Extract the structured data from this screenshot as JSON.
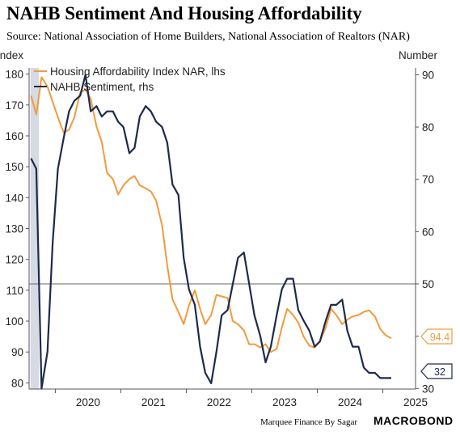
{
  "title": "NAHB Sentiment And Housing Affordability",
  "subtitle": "Source: National Association of Home Builders, National Association of Realtors (NAR)",
  "credit": "Marquee Finance By Sagar",
  "brand": "MACROBOND",
  "chart_data": {
    "type": "line",
    "title": "NAHB Sentiment And Housing Affordability",
    "left_axis": {
      "label": "Index",
      "ylim": [
        78,
        182
      ],
      "ticks": [
        80,
        90,
        100,
        110,
        120,
        130,
        140,
        150,
        160,
        170,
        180
      ]
    },
    "right_axis": {
      "label": "Number",
      "ylim": [
        29.9,
        91.3
      ],
      "ticks": [
        30,
        40,
        50,
        60,
        70,
        80,
        90
      ],
      "tick_labels": [
        "30",
        "40",
        "50",
        "60",
        "70",
        "80",
        "90"
      ]
    },
    "x_axis": {
      "range": [
        2019.6,
        2025.5
      ],
      "ticks": [
        2020,
        2021,
        2022,
        2023,
        2024,
        2025
      ],
      "tick_labels": [
        "2020",
        "2021",
        "2022",
        "2023",
        "2024",
        "2025"
      ]
    },
    "grid": false,
    "legend": "top-left",
    "shaded_period": [
      2019.62,
      2019.75
    ],
    "reference_line": {
      "axis": "right",
      "value": 50
    },
    "colors": {
      "affordability": "#f39a3c",
      "sentiment": "#1d2a4d",
      "shade": "#d5dae3",
      "ref": "#666666"
    },
    "series": [
      {
        "name": "Housing Affordability Index NAR, lhs",
        "axis": "left",
        "color": "#f39a3c",
        "x": [
          2019.63,
          2019.71,
          2019.79,
          2019.88,
          2019.96,
          2020.04,
          2020.13,
          2020.21,
          2020.29,
          2020.38,
          2020.46,
          2020.54,
          2020.63,
          2020.71,
          2020.79,
          2020.88,
          2020.96,
          2021.04,
          2021.13,
          2021.21,
          2021.29,
          2021.38,
          2021.46,
          2021.54,
          2021.63,
          2021.71,
          2021.79,
          2021.88,
          2021.96,
          2022.04,
          2022.13,
          2022.21,
          2022.29,
          2022.38,
          2022.46,
          2022.54,
          2022.63,
          2022.71,
          2022.79,
          2022.88,
          2022.96,
          2023.04,
          2023.13,
          2023.21,
          2023.29,
          2023.38,
          2023.46,
          2023.54,
          2023.63,
          2023.71,
          2023.79,
          2023.88,
          2023.96,
          2024.04,
          2024.13,
          2024.21,
          2024.29,
          2024.38,
          2024.46,
          2024.54,
          2024.63,
          2024.71,
          2024.79,
          2024.88,
          2024.96,
          2025.04,
          2025.13
        ],
        "y": [
          173,
          167,
          179,
          176,
          171,
          166,
          161,
          162,
          166,
          174,
          175,
          172,
          163,
          158,
          148,
          146,
          141,
          144,
          146,
          147,
          144,
          143,
          142,
          139,
          131,
          118,
          107,
          103,
          99,
          105,
          110,
          104,
          99,
          102,
          108.5,
          108,
          107.5,
          100,
          99,
          97,
          92.5,
          92.5,
          91.5,
          92.5,
          90,
          91,
          98,
          104,
          102,
          99.5,
          95,
          92,
          91.5,
          93.5,
          98,
          104,
          102,
          99,
          100.5,
          101.5,
          102,
          103,
          103.5,
          101.5,
          97.5,
          95.5,
          94.4
        ]
      },
      {
        "name": "NAHB Sentiment, rhs",
        "axis": "right",
        "color": "#1d2a4d",
        "x": [
          2019.63,
          2019.71,
          2019.79,
          2019.88,
          2019.96,
          2020.04,
          2020.13,
          2020.21,
          2020.29,
          2020.38,
          2020.46,
          2020.54,
          2020.63,
          2020.71,
          2020.79,
          2020.88,
          2020.96,
          2021.04,
          2021.13,
          2021.21,
          2021.29,
          2021.38,
          2021.46,
          2021.54,
          2021.63,
          2021.71,
          2021.79,
          2021.88,
          2021.96,
          2022.04,
          2022.13,
          2022.21,
          2022.29,
          2022.38,
          2022.46,
          2022.54,
          2022.63,
          2022.71,
          2022.79,
          2022.88,
          2022.96,
          2023.04,
          2023.13,
          2023.21,
          2023.29,
          2023.38,
          2023.46,
          2023.54,
          2023.63,
          2023.71,
          2023.79,
          2023.88,
          2023.96,
          2024.04,
          2024.13,
          2024.21,
          2024.29,
          2024.38,
          2024.46,
          2024.54,
          2024.63,
          2024.71,
          2024.79,
          2024.88,
          2024.96,
          2025.04,
          2025.13
        ],
        "y": [
          74,
          72,
          30,
          37,
          58,
          72,
          78,
          83,
          85,
          86,
          90,
          83,
          84,
          82,
          83,
          83,
          81,
          80,
          75,
          76,
          82,
          84,
          83,
          81,
          80,
          77,
          69,
          67,
          55,
          49,
          46,
          38,
          33,
          31,
          37,
          44,
          45,
          50,
          55,
          56,
          50,
          44,
          40,
          35,
          38,
          44,
          49,
          51,
          51,
          45,
          43,
          41,
          38,
          39,
          43,
          46,
          46,
          47,
          41,
          38,
          38,
          34,
          33,
          33,
          32,
          32,
          32
        ]
      }
    ],
    "end_labels": [
      {
        "series": "Housing Affordability Index NAR, lhs",
        "text": "94.4",
        "value": 94.4
      },
      {
        "series": "NAHB Sentiment, rhs",
        "text": "32",
        "value": 32
      }
    ]
  }
}
